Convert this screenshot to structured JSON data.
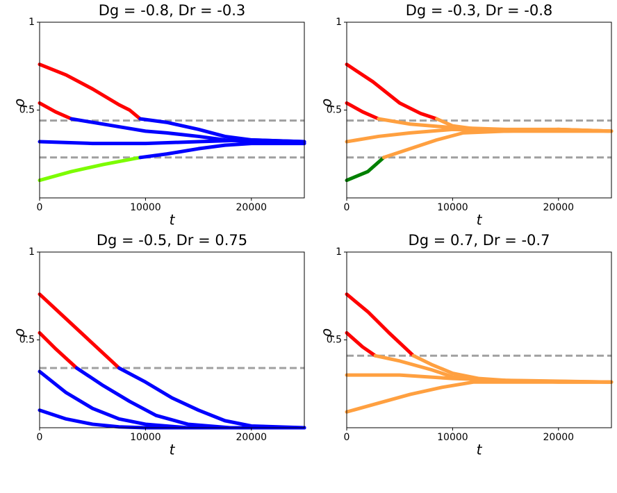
{
  "chart_data": [
    {
      "type": "line",
      "title": "Dg = -0.8, Dr = -0.3",
      "xlabel": "t",
      "ylabel": "ρ",
      "xlim": [
        0,
        25000
      ],
      "ylim": [
        0,
        1
      ],
      "xticks": [
        0,
        10000,
        20000
      ],
      "yticks": [
        0.5,
        1
      ],
      "hlines": [
        0.44,
        0.23
      ],
      "hline_color": "#a0a0a0",
      "series": [
        {
          "color": "#ff0000",
          "x": [
            0,
            2500,
            5000,
            7500,
            8500,
            9500
          ],
          "values": [
            0.76,
            0.7,
            0.62,
            0.53,
            0.5,
            0.45
          ]
        },
        {
          "color": "#0000ff",
          "x": [
            9500,
            12000,
            15000,
            17500,
            20000,
            25000
          ],
          "values": [
            0.45,
            0.43,
            0.39,
            0.35,
            0.33,
            0.32
          ]
        },
        {
          "color": "#ff0000",
          "x": [
            0,
            1500,
            3000
          ],
          "values": [
            0.54,
            0.49,
            0.45
          ]
        },
        {
          "color": "#0000ff",
          "x": [
            3000,
            5000,
            8000,
            10000,
            12000,
            15000,
            17500,
            20000,
            25000
          ],
          "values": [
            0.45,
            0.43,
            0.4,
            0.38,
            0.37,
            0.35,
            0.33,
            0.32,
            0.31
          ]
        },
        {
          "color": "#0000ff",
          "x": [
            0,
            5000,
            10000,
            15000,
            20000,
            25000
          ],
          "values": [
            0.32,
            0.31,
            0.31,
            0.32,
            0.33,
            0.32
          ]
        },
        {
          "color": "#7cfc00",
          "x": [
            0,
            3000,
            6000,
            9500
          ],
          "values": [
            0.1,
            0.15,
            0.19,
            0.23
          ]
        },
        {
          "color": "#0000ff",
          "x": [
            9500,
            12000,
            15000,
            17500,
            20000,
            25000
          ],
          "values": [
            0.23,
            0.25,
            0.28,
            0.3,
            0.31,
            0.31
          ]
        }
      ]
    },
    {
      "type": "line",
      "title": "Dg = -0.3, Dr = -0.8",
      "xlabel": "t",
      "ylabel": "ρ",
      "xlim": [
        0,
        25000
      ],
      "ylim": [
        0,
        1
      ],
      "xticks": [
        0,
        10000,
        20000
      ],
      "yticks": [
        0.5,
        1
      ],
      "hlines": [
        0.44,
        0.23
      ],
      "hline_color": "#a0a0a0",
      "series": [
        {
          "color": "#ff0000",
          "x": [
            0,
            2500,
            5000,
            7000,
            8500
          ],
          "values": [
            0.76,
            0.66,
            0.54,
            0.48,
            0.45
          ]
        },
        {
          "color": "#ffa040",
          "x": [
            8500,
            10000,
            12500,
            15000,
            20000,
            25000
          ],
          "values": [
            0.45,
            0.41,
            0.39,
            0.38,
            0.39,
            0.38
          ]
        },
        {
          "color": "#ff0000",
          "x": [
            0,
            1500,
            3000
          ],
          "values": [
            0.54,
            0.49,
            0.45
          ]
        },
        {
          "color": "#ffa040",
          "x": [
            3000,
            6000,
            10000,
            15000,
            20000,
            25000
          ],
          "values": [
            0.45,
            0.42,
            0.4,
            0.39,
            0.39,
            0.38
          ]
        },
        {
          "color": "#ffa040",
          "x": [
            0,
            3000,
            6000,
            10000,
            15000,
            20000,
            25000
          ],
          "values": [
            0.32,
            0.35,
            0.37,
            0.39,
            0.38,
            0.39,
            0.38
          ]
        },
        {
          "color": "#008000",
          "x": [
            0,
            2000,
            3500
          ],
          "values": [
            0.1,
            0.15,
            0.23
          ]
        },
        {
          "color": "#ffa040",
          "x": [
            3500,
            6000,
            8500,
            11000,
            15000,
            25000
          ],
          "values": [
            0.23,
            0.28,
            0.33,
            0.37,
            0.38,
            0.38
          ]
        }
      ]
    },
    {
      "type": "line",
      "title": "Dg = -0.5, Dr = 0.75",
      "xlabel": "t",
      "ylabel": "ρ",
      "xlim": [
        0,
        25000
      ],
      "ylim": [
        0,
        1
      ],
      "xticks": [
        0,
        10000,
        20000
      ],
      "yticks": [
        0.5,
        1
      ],
      "hlines": [
        0.34
      ],
      "hline_color": "#a0a0a0",
      "series": [
        {
          "color": "#ff0000",
          "x": [
            0,
            2500,
            5000,
            7500
          ],
          "values": [
            0.76,
            0.62,
            0.48,
            0.34
          ]
        },
        {
          "color": "#0000ff",
          "x": [
            7500,
            10000,
            12500,
            15000,
            17500,
            20000,
            25000
          ],
          "values": [
            0.34,
            0.26,
            0.17,
            0.1,
            0.04,
            0.01,
            0
          ]
        },
        {
          "color": "#ff0000",
          "x": [
            0,
            1500,
            3500
          ],
          "values": [
            0.54,
            0.45,
            0.34
          ]
        },
        {
          "color": "#0000ff",
          "x": [
            3500,
            6000,
            8500,
            11000,
            14000,
            18000,
            25000
          ],
          "values": [
            0.34,
            0.24,
            0.15,
            0.07,
            0.02,
            0,
            0
          ]
        },
        {
          "color": "#0000ff",
          "x": [
            0,
            2500,
            5000,
            7500,
            10000,
            14000,
            25000
          ],
          "values": [
            0.32,
            0.2,
            0.11,
            0.05,
            0.02,
            0,
            0
          ]
        },
        {
          "color": "#0000ff",
          "x": [
            0,
            2500,
            5000,
            7500,
            10000,
            25000
          ],
          "values": [
            0.1,
            0.05,
            0.02,
            0.005,
            0,
            0
          ]
        }
      ]
    },
    {
      "type": "line",
      "title": "Dg = 0.7, Dr = -0.7",
      "xlabel": "t",
      "ylabel": "ρ",
      "xlim": [
        0,
        25000
      ],
      "ylim": [
        0,
        1
      ],
      "xticks": [
        0,
        10000,
        20000
      ],
      "yticks": [
        0.5,
        1
      ],
      "hlines": [
        0.41
      ],
      "hline_color": "#a0a0a0",
      "series": [
        {
          "color": "#ff0000",
          "x": [
            0,
            2000,
            4000,
            6300
          ],
          "values": [
            0.76,
            0.66,
            0.54,
            0.41
          ]
        },
        {
          "color": "#ffa040",
          "x": [
            6300,
            8000,
            10000,
            12500,
            15000,
            20000,
            25000
          ],
          "values": [
            0.41,
            0.36,
            0.31,
            0.28,
            0.27,
            0.26,
            0.26
          ]
        },
        {
          "color": "#ff0000",
          "x": [
            0,
            1500,
            2700
          ],
          "values": [
            0.54,
            0.46,
            0.41
          ]
        },
        {
          "color": "#ffa040",
          "x": [
            2700,
            5000,
            8000,
            10000,
            13000,
            25000
          ],
          "values": [
            0.41,
            0.38,
            0.33,
            0.29,
            0.27,
            0.26
          ]
        },
        {
          "color": "#ffa040",
          "x": [
            0,
            5000,
            10000,
            15000,
            25000
          ],
          "values": [
            0.3,
            0.3,
            0.28,
            0.27,
            0.26
          ]
        },
        {
          "color": "#ffa040",
          "x": [
            0,
            3000,
            6000,
            9000,
            12000,
            25000
          ],
          "values": [
            0.09,
            0.14,
            0.19,
            0.23,
            0.26,
            0.26
          ]
        }
      ]
    }
  ]
}
